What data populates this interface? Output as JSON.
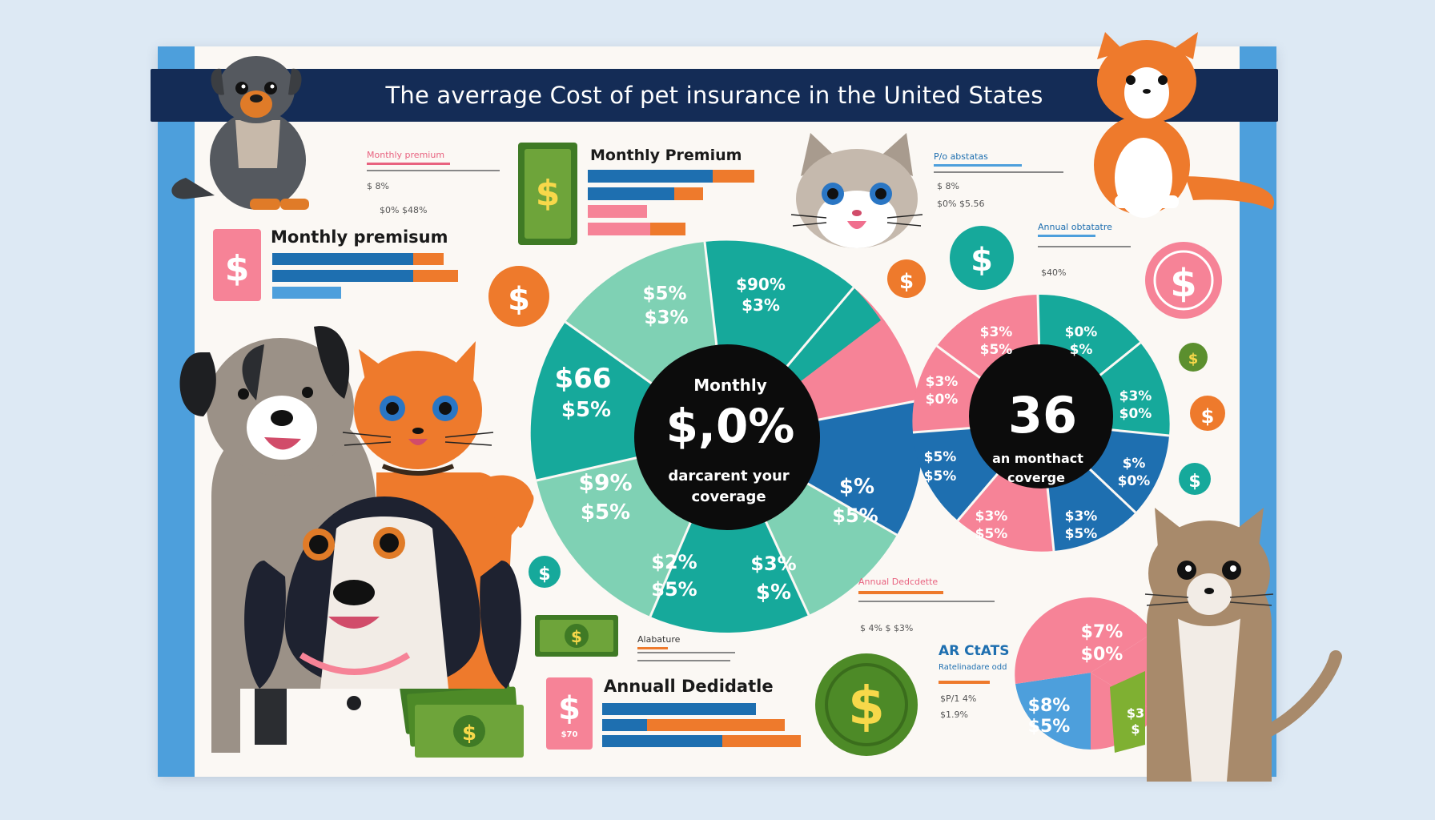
{
  "header": {
    "title": "The averrage  Cost of pet insurance in the United States"
  },
  "panels": {
    "monthly_premium_small": {
      "title": "Monthly premium",
      "line1": "$ 8%",
      "line2": "$0%   $48%"
    },
    "monthly_premium_top": {
      "title": "Monthly Premium"
    },
    "monthly_premium_left": {
      "title": "Monthly premisum"
    },
    "top_right_note": {
      "title": "P/o abstatas",
      "line1": "$ 8%",
      "line2": "$0%  $5.56"
    },
    "annual_note": {
      "title": "Annual obtatatre",
      "line1": "$40%"
    },
    "annual_deductible_small": {
      "title": "Annual Dedcdette",
      "line1": "$ 4%   $ $3%"
    },
    "annual_deductible_main": {
      "title": "Annuall Dedidatle",
      "badge_sub": "$70"
    },
    "bills_note": {
      "title": "Alabature"
    },
    "ar_stats": {
      "title": "AR CtATS",
      "subtitle": "Ratelinadare odd",
      "line1": "$P/1 4%",
      "line2": "$1.9%"
    }
  },
  "donut_left": {
    "center_top": "Monthly",
    "center_big": "$,0%",
    "center_sub1": "darcarent your",
    "center_sub2": "coverage",
    "labels": [
      {
        "a": "$5%",
        "b": "$3%"
      },
      {
        "a": "$90%",
        "b": "$3%"
      },
      {
        "a": "$66",
        "b": "$5%"
      },
      {
        "a": "$9%",
        "b": "$5%"
      },
      {
        "a": "$2%",
        "b": "$5%"
      },
      {
        "a": "$3%",
        "b": "$%"
      },
      {
        "a": "$%",
        "b": "$5%"
      }
    ]
  },
  "donut_right": {
    "center_big": "36",
    "center_sub1": "an monthact",
    "center_sub2": "coverge",
    "labels": [
      {
        "a": "$3%",
        "b": "$5%"
      },
      {
        "a": "$0%",
        "b": "$%"
      },
      {
        "a": "$3%",
        "b": "$0%"
      },
      {
        "a": "$3%",
        "b": "$0%"
      },
      {
        "a": "$5%",
        "b": "$5%"
      },
      {
        "a": "$%",
        "b": "$0%"
      },
      {
        "a": "$3%",
        "b": "$5%"
      },
      {
        "a": "$3%",
        "b": "$5%"
      }
    ]
  },
  "pie_bottom": {
    "labels": [
      {
        "a": "$7%",
        "b": "$0%"
      },
      {
        "a": "$8%",
        "b": "$5%"
      },
      {
        "a": "$3",
        "b": "$"
      }
    ]
  },
  "icons": {
    "dollar": "$"
  },
  "colors": {
    "navy": "#142c56",
    "teal": "#16a99b",
    "mint": "#7fd1b4",
    "pink": "#f68397",
    "blue": "#1e6fb0",
    "orange": "#ee7a2c",
    "green": "#5b8f2e",
    "sky": "#4d9fdc"
  }
}
